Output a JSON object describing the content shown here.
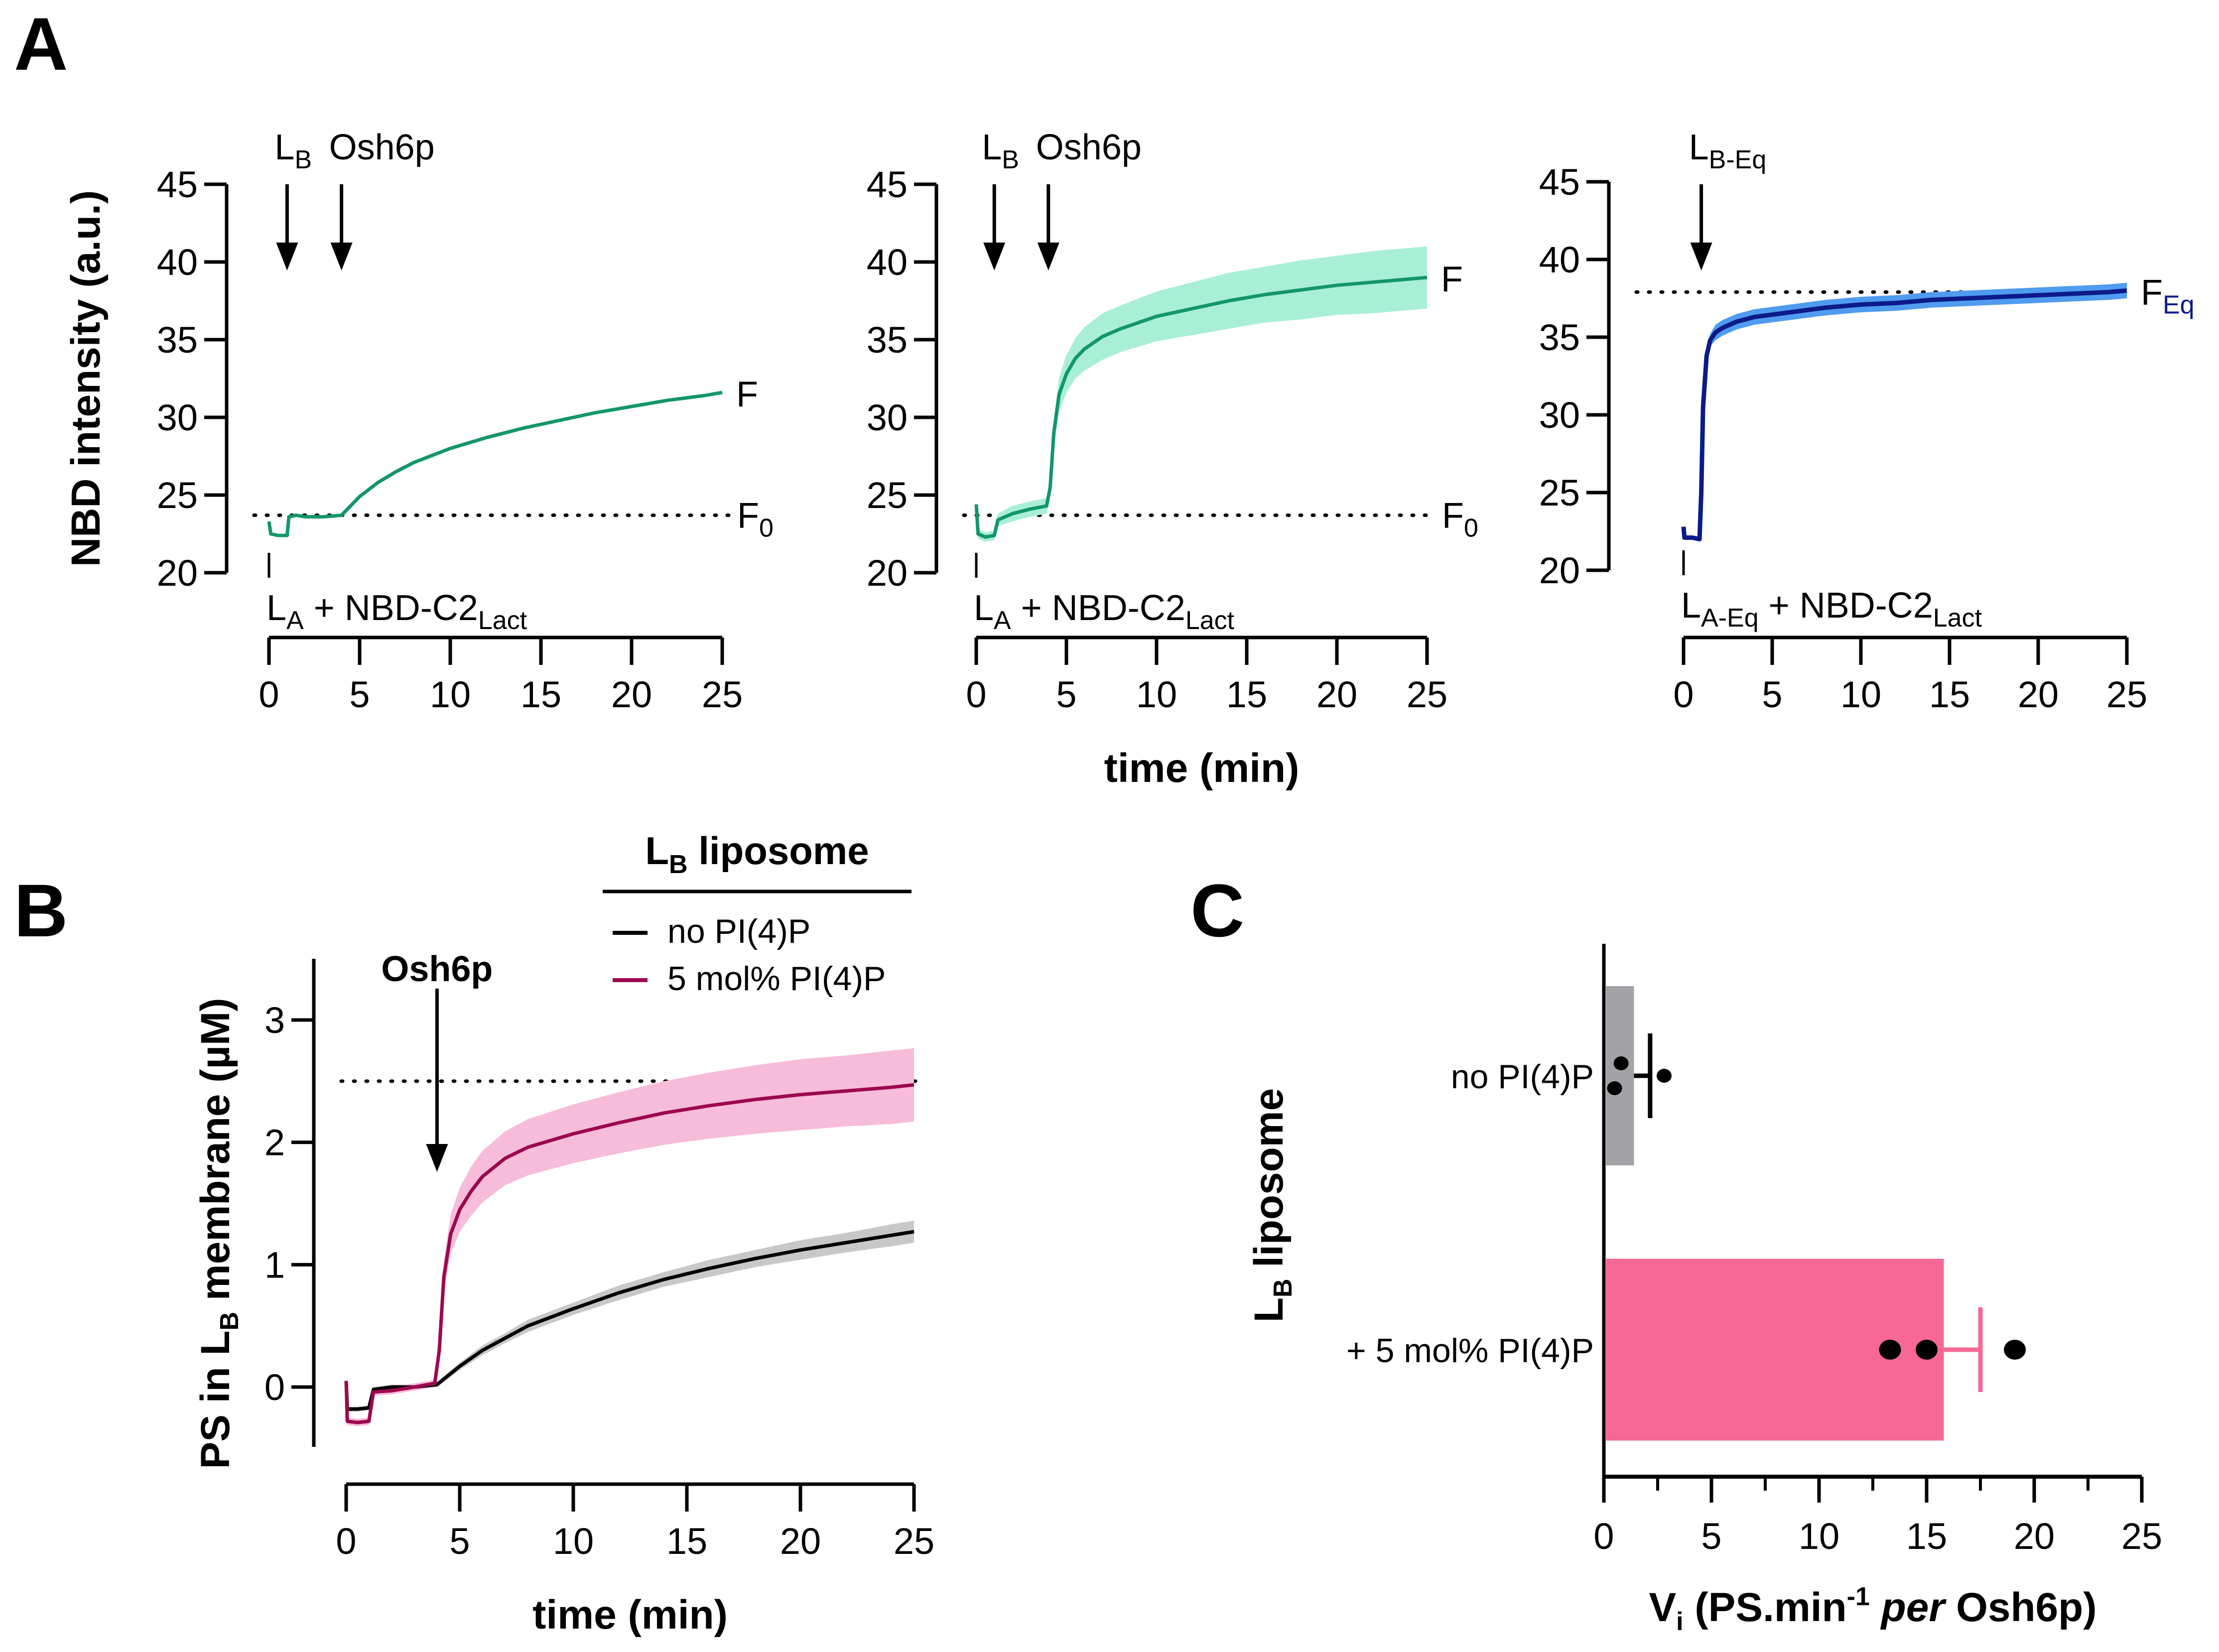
{
  "figure": {
    "panel_labels": [
      "A",
      "B",
      "C"
    ]
  },
  "chart_data": [
    {
      "id": "A1",
      "type": "line",
      "panel": "A",
      "title": "",
      "xlabel": "",
      "ylabel": "NBD intensity (a.u.)",
      "xlim": [
        0,
        25
      ],
      "ylim": [
        20,
        45
      ],
      "xticks": [
        0,
        5,
        10,
        15,
        20,
        25
      ],
      "yticks": [
        20,
        25,
        30,
        35,
        40,
        45
      ],
      "reference_line": {
        "y": 23.7,
        "style": "dotted",
        "label": "F",
        "label_sub": "0"
      },
      "end_label": {
        "text": "F",
        "color": "#1aae78"
      },
      "annotations": [
        {
          "text": "L",
          "sub": "B",
          "x": 1,
          "kind": "arrow"
        },
        {
          "text": "Osh6p",
          "sub": "",
          "x": 4,
          "kind": "arrow"
        },
        {
          "text": "L",
          "sub": "A",
          "suffix": " + NBD-C2",
          "suffix_sub": "Lact",
          "x": 0,
          "kind": "marker"
        }
      ],
      "series": [
        {
          "name": "mean",
          "color": "#13966a",
          "band_color": "#a8efd6",
          "x": [
            0,
            0.1,
            0.5,
            1.0,
            1.1,
            1.5,
            2,
            3,
            4,
            4.5,
            5,
            6,
            7,
            8,
            10,
            12,
            14,
            16,
            18,
            20,
            22,
            24,
            25
          ],
          "y": [
            23.3,
            22.5,
            22.4,
            22.4,
            23.6,
            23.7,
            23.6,
            23.6,
            23.7,
            24.3,
            24.9,
            25.8,
            26.5,
            27.1,
            28.0,
            28.7,
            29.3,
            29.8,
            30.3,
            30.7,
            31.1,
            31.4,
            31.6
          ],
          "err": [
            0,
            0,
            0,
            0,
            0,
            0,
            0,
            0,
            0,
            0,
            0,
            0,
            0,
            0,
            0,
            0,
            0,
            0,
            0,
            0,
            0,
            0,
            0
          ]
        }
      ]
    },
    {
      "id": "A2",
      "type": "line",
      "panel": "A",
      "title": "",
      "xlabel": "time (min)",
      "ylabel": "",
      "xlim": [
        0,
        25
      ],
      "ylim": [
        20,
        45
      ],
      "xticks": [
        0,
        5,
        10,
        15,
        20,
        25
      ],
      "yticks": [
        20,
        25,
        30,
        35,
        40,
        45
      ],
      "reference_line": {
        "y": 23.7,
        "style": "dotted",
        "label": "F",
        "label_sub": "0"
      },
      "end_label": {
        "text": "F",
        "color": "#1aae78"
      },
      "annotations": [
        {
          "text": "L",
          "sub": "B",
          "x": 1,
          "kind": "arrow"
        },
        {
          "text": "Osh6p",
          "sub": "",
          "x": 4,
          "kind": "arrow"
        },
        {
          "text": "L",
          "sub": "A",
          "suffix": " + NBD-C2",
          "suffix_sub": "Lact",
          "x": 0,
          "kind": "marker"
        }
      ],
      "series": [
        {
          "name": "mean",
          "color": "#13966a",
          "band_color": "#a8efd6",
          "x": [
            0,
            0.1,
            0.5,
            1.0,
            1.2,
            2,
            3,
            3.9,
            4.1,
            4.3,
            4.6,
            5,
            5.5,
            6,
            7,
            8,
            10,
            12,
            14,
            16,
            18,
            20,
            22,
            24,
            25
          ],
          "y": [
            24.4,
            22.5,
            22.3,
            22.4,
            23.4,
            23.8,
            24.1,
            24.3,
            25.5,
            29.0,
            31.5,
            32.8,
            33.8,
            34.4,
            35.2,
            35.7,
            36.5,
            37.0,
            37.5,
            37.9,
            38.2,
            38.5,
            38.7,
            38.9,
            39.0
          ],
          "err": [
            0,
            0.3,
            0.3,
            0.3,
            0.4,
            0.5,
            0.5,
            0.5,
            0.6,
            0.9,
            1.1,
            1.2,
            1.3,
            1.4,
            1.5,
            1.5,
            1.6,
            1.7,
            1.8,
            1.8,
            1.9,
            1.9,
            2.0,
            2.0,
            2.0
          ]
        }
      ]
    },
    {
      "id": "A3",
      "type": "line",
      "panel": "A",
      "title": "",
      "xlabel": "",
      "ylabel": "",
      "xlim": [
        0,
        25
      ],
      "ylim": [
        20,
        45
      ],
      "xticks": [
        0,
        5,
        10,
        15,
        20,
        25
      ],
      "yticks": [
        20,
        25,
        30,
        35,
        40,
        45
      ],
      "reference_line": {
        "y": 37.9,
        "style": "dotted",
        "label": "",
        "label_sub": ""
      },
      "end_label": {
        "text": "F",
        "sub": "Eq",
        "color": "#0c1a8a"
      },
      "annotations": [
        {
          "text": "L",
          "sub": "B-Eq",
          "x": 1,
          "kind": "arrow"
        },
        {
          "text": "L",
          "sub": "A-Eq",
          "suffix": " + NBD-C2",
          "suffix_sub": "Lact",
          "x": 0,
          "kind": "marker"
        }
      ],
      "series": [
        {
          "name": "mean",
          "color": "#0c1a8a",
          "band_color": "#4f9bf0",
          "x": [
            0,
            0.05,
            0.5,
            0.9,
            1.0,
            1.1,
            1.3,
            1.5,
            1.8,
            2.2,
            3,
            4,
            6,
            8,
            10,
            12,
            14,
            16,
            18,
            20,
            22,
            24,
            25
          ],
          "y": [
            22.8,
            22.1,
            22.1,
            22.0,
            25.0,
            30.5,
            33.8,
            34.8,
            35.3,
            35.6,
            36.0,
            36.3,
            36.6,
            36.9,
            37.1,
            37.2,
            37.4,
            37.5,
            37.6,
            37.7,
            37.8,
            37.9,
            38.0
          ],
          "err": [
            0,
            0.1,
            0.1,
            0.1,
            0.2,
            0.3,
            0.4,
            0.4,
            0.5,
            0.5,
            0.5,
            0.5,
            0.5,
            0.5,
            0.5,
            0.5,
            0.5,
            0.5,
            0.5,
            0.5,
            0.5,
            0.5,
            0.5
          ]
        }
      ]
    },
    {
      "id": "B",
      "type": "line",
      "panel": "B",
      "title": "",
      "xlabel": "time (min)",
      "ylabel": "PS in L",
      "ylabel_sub": "B",
      "ylabel_suffix": " membrane (µM)",
      "xlim": [
        0,
        25
      ],
      "ylim": [
        -0.5,
        3.5
      ],
      "xticks": [
        0,
        5,
        10,
        15,
        20,
        25
      ],
      "yticks": [
        0,
        1,
        2,
        3
      ],
      "reference_line": {
        "y": 2.5,
        "style": "dotted"
      },
      "annotations": [
        {
          "text": "Osh6p",
          "x": 4,
          "kind": "arrow",
          "bold": true
        }
      ],
      "legend": {
        "title": "L",
        "title_sub": "B",
        "title_suffix": " liposome",
        "position": "top-right",
        "entries": [
          {
            "label": "no PI(4)P",
            "color": "#000000"
          },
          {
            "label": "5 mol% PI(4)P",
            "color": "#9c0850"
          }
        ]
      },
      "series": [
        {
          "name": "no PI(4)P",
          "color": "#000000",
          "band_color": "#c8c8c8",
          "x": [
            0,
            0.05,
            0.5,
            1.0,
            1.2,
            2,
            3,
            4,
            5,
            6,
            7,
            8,
            10,
            12,
            14,
            16,
            18,
            20,
            22,
            24,
            25
          ],
          "y": [
            0.05,
            -0.18,
            -0.18,
            -0.17,
            -0.02,
            0.0,
            0.0,
            0.02,
            0.17,
            0.3,
            0.4,
            0.5,
            0.64,
            0.77,
            0.88,
            0.97,
            1.05,
            1.12,
            1.18,
            1.24,
            1.27
          ],
          "err": [
            0,
            0.02,
            0.02,
            0.02,
            0.02,
            0.02,
            0.02,
            0.02,
            0.03,
            0.04,
            0.04,
            0.05,
            0.05,
            0.06,
            0.06,
            0.07,
            0.07,
            0.08,
            0.08,
            0.09,
            0.09
          ]
        },
        {
          "name": "5 mol% PI(4)P",
          "color": "#9c0850",
          "band_color": "#f7bcd9",
          "x": [
            0,
            0.05,
            0.5,
            1.0,
            1.2,
            2,
            3,
            3.9,
            4.1,
            4.3,
            4.6,
            5,
            5.5,
            6,
            7,
            8,
            10,
            12,
            14,
            16,
            18,
            20,
            22,
            24,
            25
          ],
          "y": [
            0.05,
            -0.28,
            -0.29,
            -0.28,
            -0.04,
            -0.03,
            0.0,
            0.03,
            0.3,
            0.9,
            1.25,
            1.45,
            1.6,
            1.72,
            1.87,
            1.96,
            2.07,
            2.16,
            2.24,
            2.3,
            2.35,
            2.39,
            2.42,
            2.45,
            2.47
          ],
          "err": [
            0,
            0.03,
            0.03,
            0.03,
            0.03,
            0.03,
            0.03,
            0.03,
            0.06,
            0.12,
            0.16,
            0.18,
            0.2,
            0.21,
            0.22,
            0.23,
            0.24,
            0.25,
            0.26,
            0.27,
            0.28,
            0.29,
            0.29,
            0.3,
            0.3
          ]
        }
      ]
    },
    {
      "id": "C",
      "type": "bar",
      "panel": "C",
      "orientation": "horizontal",
      "title": "",
      "xlabel": "V",
      "xlabel_sub": "i",
      "xlabel_rest": " (PS.min",
      "xlabel_sup": "-1",
      "xlabel_italic": " per",
      "xlabel_end": " Osh6p)",
      "ylabel": "L",
      "ylabel_sub": "B",
      "ylabel_suffix": " liposome",
      "xlim": [
        0,
        25
      ],
      "xticks": [
        0,
        5,
        10,
        15,
        20,
        25
      ],
      "xminor": [
        2.5,
        7.5,
        12.5,
        17.5,
        22.5
      ],
      "categories": [
        "no PI(4)P",
        "+ 5 mol% PI(4)P"
      ],
      "values": [
        1.4,
        15.8
      ],
      "errors": [
        0.75,
        1.7
      ],
      "colors": [
        "#a3a2a6",
        "#f76894"
      ],
      "error_colors": [
        "#000000",
        "#f76894"
      ],
      "points": [
        [
          0.8,
          0.5,
          2.8
        ],
        [
          13.3,
          15.0,
          19.1
        ]
      ]
    }
  ]
}
